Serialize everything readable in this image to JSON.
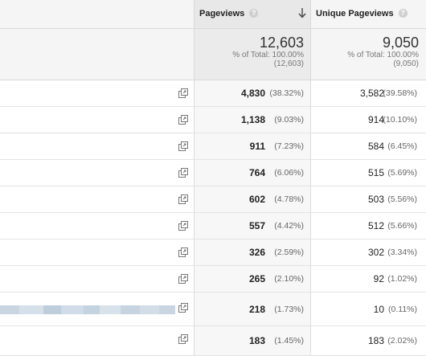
{
  "columns": {
    "pageviews": {
      "label": "Pageviews",
      "help": "?",
      "sort_icon": "arrow-down-icon"
    },
    "unique_pageviews": {
      "label": "Unique Pageviews",
      "help": "?"
    }
  },
  "totals": {
    "pageviews": {
      "value": "12,603",
      "pct_label": "% of Total: 100.00%",
      "sub": "(12,603)"
    },
    "unique_pageviews": {
      "value": "9,050",
      "pct_label": "% of Total: 100.00%",
      "sub": "(9,050)"
    }
  },
  "rows": [
    {
      "pv": "4,830",
      "pv_pct": "(38.32%)",
      "upv": "3,582",
      "upv_pct": "(39.58%)"
    },
    {
      "pv": "1,138",
      "pv_pct": "(9.03%)",
      "upv": "914",
      "upv_pct": "(10.10%)"
    },
    {
      "pv": "911",
      "pv_pct": "(7.23%)",
      "upv": "584",
      "upv_pct": "(6.45%)"
    },
    {
      "pv": "764",
      "pv_pct": "(6.06%)",
      "upv": "515",
      "upv_pct": "(5.69%)"
    },
    {
      "pv": "602",
      "pv_pct": "(4.78%)",
      "upv": "503",
      "upv_pct": "(5.56%)"
    },
    {
      "pv": "557",
      "pv_pct": "(4.42%)",
      "upv": "512",
      "upv_pct": "(5.66%)"
    },
    {
      "pv": "326",
      "pv_pct": "(2.59%)",
      "upv": "302",
      "upv_pct": "(3.34%)"
    },
    {
      "pv": "265",
      "pv_pct": "(2.10%)",
      "upv": "92",
      "upv_pct": "(1.02%)"
    },
    {
      "pv": "218",
      "pv_pct": "(1.73%)",
      "upv": "10",
      "upv_pct": "(0.11%)"
    },
    {
      "pv": "183",
      "pv_pct": "(1.45%)",
      "upv": "183",
      "upv_pct": "(2.02%)"
    }
  ],
  "icons": {
    "row_link": "open-in-new-window-icon"
  },
  "colors": {
    "header_bg": "#f5f5f5",
    "sorted_column_bg": "#e8e8e8",
    "help_icon": "#cfcfcf"
  }
}
